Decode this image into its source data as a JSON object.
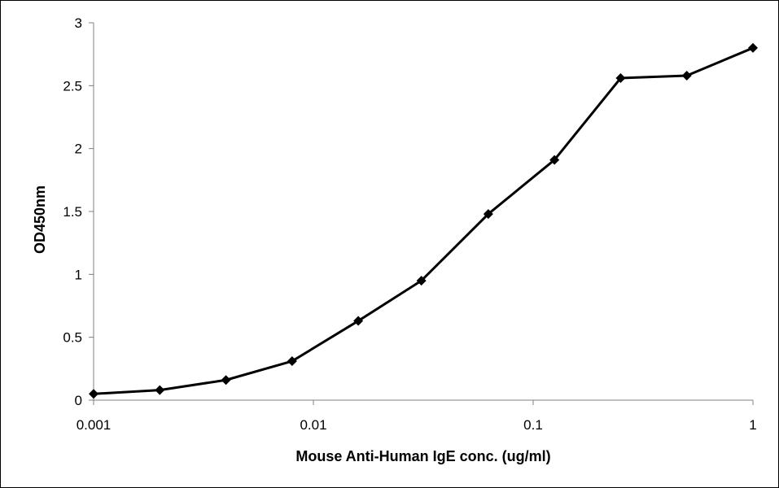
{
  "chart_data": {
    "type": "line",
    "title": "",
    "xlabel": "Mouse Anti-Human IgE  conc. (ug/ml)",
    "ylabel": "OD450nm",
    "x_scale": "log",
    "xlim": [
      0.001,
      1
    ],
    "ylim": [
      0,
      3
    ],
    "x_ticks": [
      0.001,
      0.01,
      0.1,
      1
    ],
    "x_tick_labels": [
      "0.001",
      "0.01",
      "0.1",
      "1"
    ],
    "y_ticks": [
      0,
      0.5,
      1,
      1.5,
      2,
      2.5,
      3
    ],
    "y_tick_labels": [
      "0",
      "0.5",
      "1",
      "1.5",
      "2",
      "2.5",
      "3"
    ],
    "grid": false,
    "legend": "none",
    "marker": "diamond",
    "series": [
      {
        "color": "#000000",
        "x": [
          0.001,
          0.002,
          0.004,
          0.008,
          0.016,
          0.031,
          0.0625,
          0.125,
          0.25,
          0.5,
          1
        ],
        "y": [
          0.05,
          0.08,
          0.16,
          0.31,
          0.63,
          0.95,
          1.48,
          1.91,
          2.56,
          2.58,
          2.8
        ]
      }
    ]
  }
}
